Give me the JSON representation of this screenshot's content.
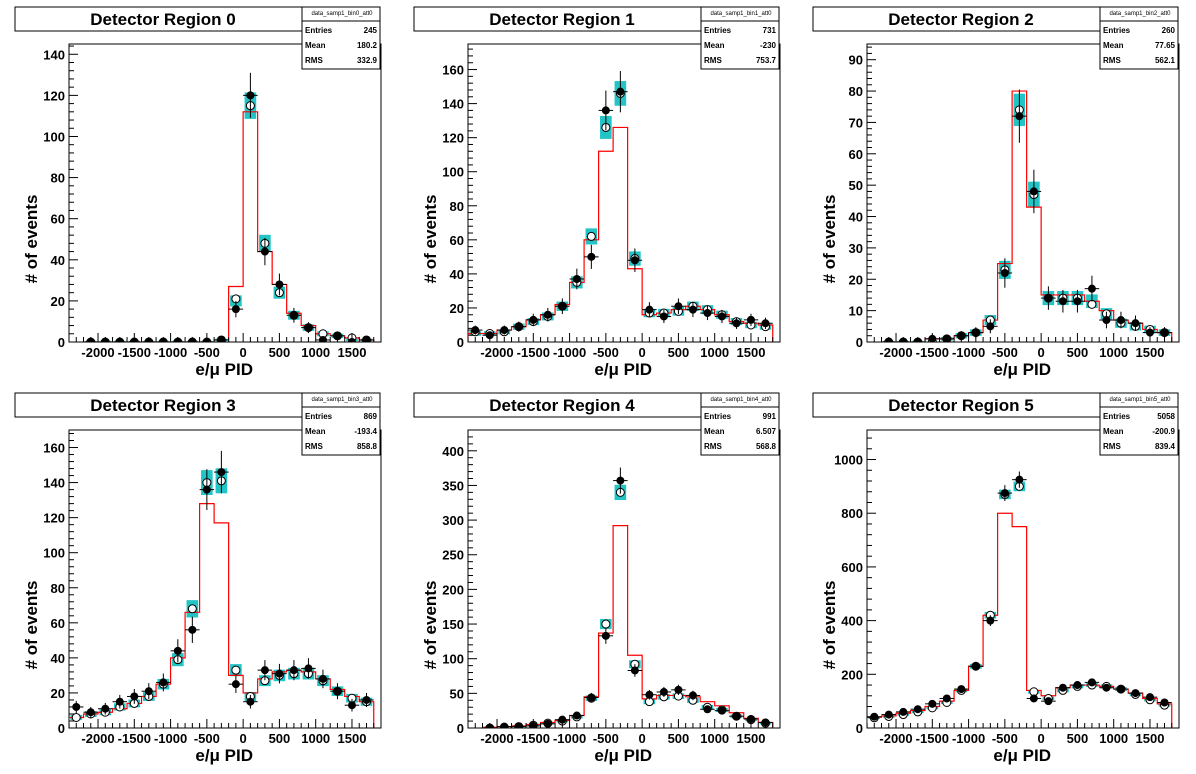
{
  "chart_data": [
    {
      "type": "histogram",
      "title": "Detector Region 0",
      "xlabel": "e/μ PID",
      "ylabel": "# of events",
      "xlim": [
        -2400,
        1900
      ],
      "ylim": [
        0,
        145
      ],
      "xticks": [
        -2000,
        -1500,
        -1000,
        -500,
        0,
        500,
        1000,
        1500
      ],
      "xtick_labels": [
        "-2000",
        "-1500",
        "-1000",
        "-500",
        "0",
        "500",
        "1000",
        "1500"
      ],
      "yticks": [
        0,
        20,
        40,
        60,
        80,
        100,
        120,
        140
      ],
      "stats": {
        "name": "data_samp1_bin0_att0",
        "rows": [
          [
            "Entries",
            "245"
          ],
          [
            "Mean",
            "180.2"
          ],
          [
            "RMS",
            "332.9"
          ]
        ]
      },
      "x": [
        -2100,
        -1900,
        -1700,
        -1500,
        -1300,
        -1100,
        -900,
        -700,
        -500,
        -300,
        -100,
        100,
        300,
        500,
        700,
        900,
        1100,
        1300,
        1500,
        1700
      ],
      "mc_values": [
        0,
        0,
        0,
        0,
        0,
        0,
        0,
        0,
        0,
        1,
        27,
        112,
        44,
        28,
        14,
        8,
        4,
        3,
        2,
        1
      ],
      "band_values": [
        0,
        0,
        0,
        0,
        0,
        0,
        0,
        0,
        0,
        1,
        20,
        115,
        48,
        24,
        13,
        7,
        4,
        3,
        1,
        1
      ],
      "open_values": [
        0,
        0,
        0,
        0,
        0,
        0,
        0,
        0,
        0,
        1,
        21,
        115,
        48,
        24,
        13,
        7,
        4,
        3,
        2,
        1
      ],
      "data_values": [
        0,
        0,
        0,
        0,
        0,
        0,
        0,
        0,
        0,
        1,
        16,
        120,
        44,
        28,
        13,
        7,
        1,
        3,
        0,
        1
      ]
    },
    {
      "type": "histogram",
      "title": "Detector Region 1",
      "xlabel": "e/μ PID",
      "ylabel": "# of events",
      "xlim": [
        -2400,
        1900
      ],
      "ylim": [
        0,
        175
      ],
      "xticks": [
        -2000,
        -1500,
        -1000,
        -500,
        0,
        500,
        1000,
        1500
      ],
      "xtick_labels": [
        "-2000",
        "-1500",
        "-1000",
        "-500",
        "0",
        "500",
        "1000",
        "1500"
      ],
      "yticks": [
        0,
        20,
        40,
        60,
        80,
        100,
        120,
        140,
        160
      ],
      "stats": {
        "name": "data_samp1_bin1_att0",
        "rows": [
          [
            "Entries",
            "731"
          ],
          [
            "Mean",
            "-230"
          ],
          [
            "RMS",
            "753.7"
          ]
        ]
      },
      "x": [
        -2300,
        -2100,
        -1900,
        -1700,
        -1500,
        -1300,
        -1100,
        -900,
        -700,
        -500,
        -300,
        -100,
        100,
        300,
        500,
        700,
        900,
        1100,
        1300,
        1500,
        1700
      ],
      "mc_values": [
        5,
        5,
        7,
        9,
        13,
        16,
        22,
        35,
        60,
        112,
        126,
        43,
        16,
        17,
        19,
        21,
        19,
        16,
        12,
        11,
        10
      ],
      "band_values": [
        5,
        5,
        6,
        9,
        12,
        15,
        21,
        35,
        62,
        126,
        146,
        49,
        17,
        17,
        18,
        21,
        19,
        16,
        12,
        10,
        9
      ],
      "open_values": [
        6,
        5,
        6,
        9,
        12,
        15,
        21,
        35,
        62,
        126,
        146,
        49,
        17,
        17,
        18,
        21,
        19,
        16,
        12,
        10,
        9
      ],
      "data_values": [
        7,
        4,
        7,
        9,
        13,
        16,
        21,
        37,
        50,
        136,
        147,
        48,
        19,
        15,
        21,
        19,
        17,
        15,
        11,
        13,
        11
      ]
    },
    {
      "type": "histogram",
      "title": "Detector Region 2",
      "xlabel": "e/μ PID",
      "ylabel": "# of events",
      "xlim": [
        -2400,
        1900
      ],
      "ylim": [
        0,
        95
      ],
      "xticks": [
        -2000,
        -1500,
        -1000,
        -500,
        0,
        500,
        1000,
        1500
      ],
      "xtick_labels": [
        "-2000",
        "-1500",
        "-1000",
        "-500",
        "0",
        "500",
        "1000",
        "1500"
      ],
      "yticks": [
        0,
        10,
        20,
        30,
        40,
        50,
        60,
        70,
        80,
        90
      ],
      "stats": {
        "name": "data_samp1_bin2_att0",
        "rows": [
          [
            "Entries",
            "260"
          ],
          [
            "Mean",
            "77.65"
          ],
          [
            "RMS",
            "562.1"
          ]
        ]
      },
      "x": [
        -2100,
        -1900,
        -1700,
        -1500,
        -1300,
        -1100,
        -900,
        -700,
        -500,
        -300,
        -100,
        100,
        300,
        500,
        700,
        900,
        1100,
        1300,
        1500,
        1700
      ],
      "mc_values": [
        0,
        0,
        0,
        1,
        1,
        2,
        3,
        7,
        25,
        80,
        43,
        15,
        15,
        15,
        13,
        10,
        7,
        6,
        4,
        3
      ],
      "band_values": [
        0,
        0,
        0,
        0,
        1,
        2,
        3,
        7,
        23,
        74,
        47,
        14,
        14,
        14,
        13,
        9,
        6,
        5,
        4,
        3
      ],
      "open_values": [
        0,
        0,
        0,
        0,
        1,
        2,
        3,
        7,
        23,
        74,
        47,
        14,
        14,
        14,
        12,
        9,
        6,
        5,
        4,
        3
      ],
      "data_values": [
        0,
        0,
        0,
        1,
        1,
        2,
        3,
        5,
        22,
        72,
        48,
        14,
        13,
        13,
        17,
        7,
        7,
        6,
        3,
        3
      ]
    },
    {
      "type": "histogram",
      "title": "Detector Region 3",
      "xlabel": "e/μ PID",
      "ylabel": "# of events",
      "xlim": [
        -2400,
        1900
      ],
      "ylim": [
        0,
        170
      ],
      "xticks": [
        -2000,
        -1500,
        -1000,
        -500,
        0,
        500,
        1000,
        1500
      ],
      "xtick_labels": [
        "-2000",
        "-1500",
        "-1000",
        "-500",
        "0",
        "500",
        "1000",
        "1500"
      ],
      "yticks": [
        0,
        20,
        40,
        60,
        80,
        100,
        120,
        140,
        160
      ],
      "stats": {
        "name": "data_samp1_bin3_att0",
        "rows": [
          [
            "Entries",
            "869"
          ],
          [
            "Mean",
            "-193.4"
          ],
          [
            "RMS",
            "858.8"
          ]
        ]
      },
      "x": [
        -2300,
        -2100,
        -1900,
        -1700,
        -1500,
        -1300,
        -1100,
        -900,
        -700,
        -500,
        -300,
        -100,
        100,
        300,
        500,
        700,
        900,
        1100,
        1300,
        1500,
        1700
      ],
      "mc_values": [
        6,
        8,
        9,
        11,
        14,
        18,
        25,
        40,
        66,
        128,
        117,
        30,
        20,
        28,
        32,
        33,
        32,
        28,
        22,
        18,
        15
      ],
      "band_values": [
        6,
        8,
        9,
        12,
        14,
        18,
        25,
        39,
        68,
        140,
        141,
        33,
        18,
        27,
        30,
        31,
        31,
        27,
        21,
        17,
        15
      ],
      "open_values": [
        6,
        8,
        9,
        12,
        14,
        18,
        25,
        39,
        68,
        140,
        141,
        33,
        18,
        27,
        30,
        31,
        31,
        27,
        21,
        17,
        15
      ],
      "data_values": [
        12,
        9,
        11,
        15,
        18,
        21,
        26,
        44,
        56,
        136,
        146,
        25,
        15,
        33,
        31,
        33,
        34,
        28,
        21,
        13,
        16
      ]
    },
    {
      "type": "histogram",
      "title": "Detector Region 4",
      "xlabel": "e/μ PID",
      "ylabel": "# of events",
      "xlim": [
        -2400,
        1900
      ],
      "ylim": [
        0,
        430
      ],
      "xticks": [
        -2000,
        -1500,
        -1000,
        -500,
        0,
        500,
        1000,
        1500
      ],
      "xtick_labels": [
        "-2000",
        "-1500",
        "-1000",
        "-500",
        "0",
        "500",
        "1000",
        "1500"
      ],
      "yticks": [
        0,
        50,
        100,
        150,
        200,
        250,
        300,
        350,
        400
      ],
      "stats": {
        "name": "data_samp1_bin4_att0",
        "rows": [
          [
            "Entries",
            "991"
          ],
          [
            "Mean",
            "6.507"
          ],
          [
            "RMS",
            "568.8"
          ]
        ]
      },
      "x": [
        -2100,
        -1900,
        -1700,
        -1500,
        -1300,
        -1100,
        -900,
        -700,
        -500,
        -300,
        -100,
        100,
        300,
        500,
        700,
        900,
        1100,
        1300,
        1500,
        1700
      ],
      "mc_values": [
        1,
        2,
        3,
        5,
        8,
        11,
        18,
        45,
        137,
        292,
        105,
        42,
        47,
        47,
        45,
        38,
        32,
        22,
        14,
        8
      ],
      "band_values": [
        0,
        1,
        2,
        4,
        7,
        10,
        16,
        43,
        150,
        340,
        92,
        38,
        45,
        46,
        40,
        30,
        26,
        17,
        12,
        7
      ],
      "open_values": [
        0,
        1,
        2,
        4,
        7,
        10,
        16,
        43,
        150,
        340,
        92,
        38,
        45,
        46,
        40,
        30,
        26,
        17,
        12,
        7
      ],
      "data_values": [
        0,
        2,
        2,
        3,
        6,
        12,
        18,
        44,
        133,
        357,
        83,
        48,
        52,
        55,
        47,
        27,
        25,
        17,
        13,
        8
      ]
    },
    {
      "type": "histogram",
      "title": "Detector Region 5",
      "xlabel": "e/μ PID",
      "ylabel": "# of events",
      "xlim": [
        -2400,
        1900
      ],
      "ylim": [
        0,
        1110
      ],
      "xticks": [
        -2000,
        -1500,
        -1000,
        -500,
        0,
        500,
        1000,
        1500
      ],
      "xtick_labels": [
        "-2000",
        "-1500",
        "-1000",
        "-500",
        "0",
        "500",
        "1000",
        "1500"
      ],
      "yticks": [
        0,
        200,
        400,
        600,
        800,
        1000
      ],
      "stats": {
        "name": "data_samp1_bin5_att0",
        "rows": [
          [
            "Entries",
            "5058"
          ],
          [
            "Mean",
            "-200.9"
          ],
          [
            "RMS",
            "839.4"
          ]
        ]
      },
      "x": [
        -2300,
        -2100,
        -1900,
        -1700,
        -1500,
        -1300,
        -1100,
        -900,
        -700,
        -500,
        -300,
        -100,
        100,
        300,
        500,
        700,
        900,
        1100,
        1300,
        1500,
        1700
      ],
      "mc_values": [
        40,
        45,
        55,
        65,
        80,
        100,
        140,
        230,
        420,
        800,
        750,
        140,
        120,
        150,
        160,
        160,
        155,
        145,
        130,
        110,
        90
      ],
      "band_values": [
        38,
        43,
        50,
        60,
        75,
        95,
        140,
        230,
        420,
        870,
        900,
        135,
        110,
        140,
        155,
        160,
        155,
        145,
        125,
        105,
        85
      ],
      "open_values": [
        38,
        43,
        50,
        60,
        75,
        95,
        140,
        230,
        420,
        870,
        900,
        135,
        110,
        140,
        155,
        160,
        155,
        145,
        125,
        105,
        85
      ],
      "data_values": [
        42,
        50,
        60,
        70,
        90,
        110,
        145,
        230,
        400,
        875,
        925,
        110,
        100,
        150,
        160,
        170,
        150,
        145,
        130,
        115,
        95
      ]
    }
  ]
}
